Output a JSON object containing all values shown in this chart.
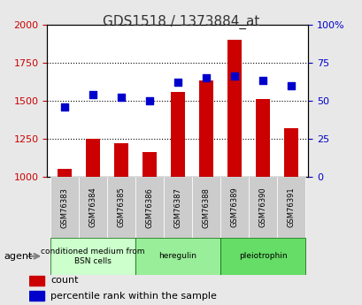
{
  "title": "GDS1518 / 1373884_at",
  "samples": [
    "GSM76383",
    "GSM76384",
    "GSM76385",
    "GSM76386",
    "GSM76387",
    "GSM76388",
    "GSM76389",
    "GSM76390",
    "GSM76391"
  ],
  "counts": [
    1050,
    1250,
    1220,
    1160,
    1555,
    1630,
    1900,
    1510,
    1320
  ],
  "percentiles": [
    46,
    54,
    52,
    50,
    62,
    65,
    66,
    63,
    60
  ],
  "count_baseline": 1000,
  "ylim_left": [
    1000,
    2000
  ],
  "ylim_right": [
    0,
    100
  ],
  "yticks_left": [
    1000,
    1250,
    1500,
    1750,
    2000
  ],
  "yticks_right": [
    0,
    25,
    50,
    75,
    100
  ],
  "bar_color": "#cc0000",
  "dot_color": "#0000cc",
  "groups": [
    {
      "label": "conditioned medium from\nBSN cells",
      "start": 0,
      "end": 3,
      "color": "#ccffcc"
    },
    {
      "label": "heregulin",
      "start": 3,
      "end": 6,
      "color": "#99ee99"
    },
    {
      "label": "pleiotrophin",
      "start": 6,
      "end": 9,
      "color": "#66dd66"
    }
  ],
  "agent_label": "agent",
  "legend_count_label": "count",
  "legend_pct_label": "percentile rank within the sample",
  "background_color": "#e8e8e8",
  "plot_bg_color": "#ffffff",
  "title_color": "#333333",
  "left_axis_color": "#cc0000",
  "right_axis_color": "#0000cc"
}
